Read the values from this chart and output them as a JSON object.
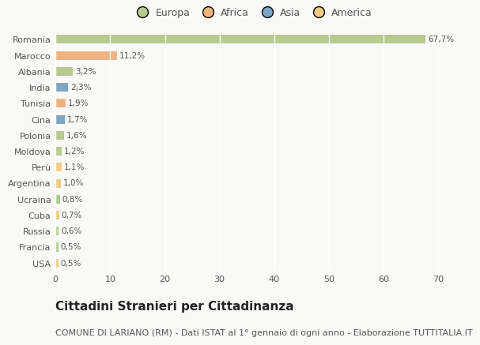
{
  "countries": [
    "Romania",
    "Marocco",
    "Albania",
    "India",
    "Tunisia",
    "Cina",
    "Polonia",
    "Moldova",
    "Perù",
    "Argentina",
    "Ucraina",
    "Cuba",
    "Russia",
    "Francia",
    "USA"
  ],
  "values": [
    67.7,
    11.2,
    3.2,
    2.3,
    1.9,
    1.7,
    1.6,
    1.2,
    1.1,
    1.0,
    0.8,
    0.7,
    0.6,
    0.5,
    0.5
  ],
  "labels": [
    "67,7%",
    "11,2%",
    "3,2%",
    "2,3%",
    "1,9%",
    "1,7%",
    "1,6%",
    "1,2%",
    "1,1%",
    "1,0%",
    "0,8%",
    "0,7%",
    "0,6%",
    "0,5%",
    "0,5%"
  ],
  "continents": [
    "Europa",
    "Africa",
    "Europa",
    "Asia",
    "Africa",
    "Asia",
    "Europa",
    "Europa",
    "America",
    "America",
    "Europa",
    "America",
    "Europa",
    "Europa",
    "America"
  ],
  "continent_colors": {
    "Europa": "#b5cc8e",
    "Africa": "#f0b482",
    "Asia": "#7ea6c4",
    "America": "#f0cc82"
  },
  "legend_order": [
    "Europa",
    "Africa",
    "Asia",
    "America"
  ],
  "legend_colors": [
    "#b5cc8e",
    "#f0b482",
    "#7ea6c4",
    "#f0cc82"
  ],
  "title": "Cittadini Stranieri per Cittadinanza",
  "subtitle": "COMUNE DI LARIANO (RM) - Dati ISTAT al 1° gennaio di ogni anno - Elaborazione TUTTITALIA.IT",
  "xlim": [
    0,
    72
  ],
  "xticks": [
    0,
    10,
    20,
    30,
    40,
    50,
    60,
    70
  ],
  "background_color": "#f9f9f7",
  "grid_color": "#ffffff",
  "bar_height": 0.55,
  "title_fontsize": 11,
  "subtitle_fontsize": 8,
  "label_fontsize": 7.5,
  "tick_fontsize": 8,
  "legend_fontsize": 9
}
